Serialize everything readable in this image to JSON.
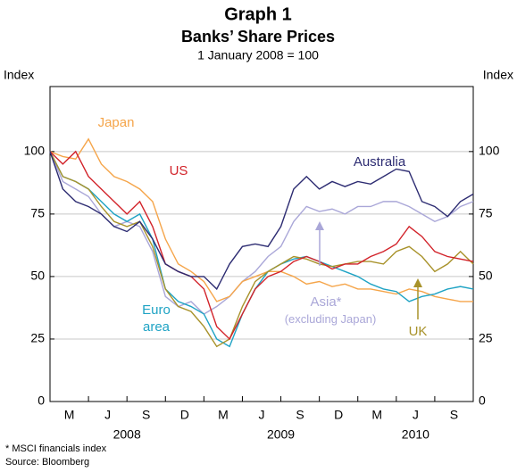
{
  "chart_data": {
    "type": "line",
    "title": "Graph 1",
    "subtitle": "Banks’ Share Prices",
    "note": "1 January 2008 = 100",
    "y_label": "Index",
    "y2_label": "Index",
    "x": [
      0,
      1,
      2,
      3,
      4,
      5,
      6,
      7,
      8,
      9,
      10,
      11,
      12,
      13,
      14,
      15,
      16,
      17,
      18,
      19,
      20,
      21,
      22,
      23,
      24,
      25,
      26,
      27,
      28,
      29,
      30,
      31,
      32,
      33
    ],
    "xlim": [
      0,
      33
    ],
    "xticks": [
      3,
      6,
      9,
      12,
      15,
      18,
      21,
      24,
      27,
      30
    ],
    "quarter_labels": [
      {
        "value": 1.5,
        "label": "M"
      },
      {
        "value": 4.5,
        "label": "J"
      },
      {
        "value": 7.5,
        "label": "S"
      },
      {
        "value": 10.5,
        "label": "D"
      },
      {
        "value": 13.5,
        "label": "M"
      },
      {
        "value": 16.5,
        "label": "J"
      },
      {
        "value": 19.5,
        "label": "S"
      },
      {
        "value": 22.5,
        "label": "D"
      },
      {
        "value": 25.5,
        "label": "M"
      },
      {
        "value": 28.5,
        "label": "J"
      },
      {
        "value": 31.5,
        "label": "S"
      }
    ],
    "years": [
      {
        "value": 6,
        "label": "2008"
      },
      {
        "value": 18,
        "label": "2009"
      },
      {
        "value": 28.5,
        "label": "2010"
      }
    ],
    "ylim": [
      0,
      126
    ],
    "yticks": [
      0,
      25,
      50,
      75,
      100
    ],
    "grid": true,
    "series": [
      {
        "name": "Australia",
        "color": "#2d2c72",
        "values": [
          100,
          85,
          80,
          78,
          75,
          70,
          68,
          72,
          65,
          55,
          52,
          50,
          50,
          45,
          55,
          62,
          63,
          62,
          70,
          85,
          90,
          85,
          88,
          86,
          88,
          87,
          90,
          93,
          92,
          80,
          78,
          74,
          80,
          83
        ]
      },
      {
        "name": "US",
        "color": "#d2232a",
        "values": [
          100,
          95,
          100,
          90,
          85,
          80,
          75,
          80,
          70,
          55,
          52,
          50,
          45,
          30,
          25,
          35,
          45,
          50,
          52,
          56,
          58,
          56,
          53,
          55,
          55,
          58,
          60,
          63,
          70,
          66,
          60,
          58,
          57,
          56
        ]
      },
      {
        "name": "Japan",
        "color": "#f5a54a",
        "values": [
          100,
          98,
          97,
          105,
          95,
          90,
          88,
          85,
          80,
          65,
          55,
          52,
          48,
          40,
          42,
          48,
          50,
          52,
          52,
          50,
          47,
          48,
          46,
          47,
          45,
          45,
          44,
          43,
          45,
          44,
          42,
          41,
          40,
          40
        ]
      },
      {
        "name": "Euro area",
        "color": "#1fa3c4",
        "values": [
          100,
          90,
          88,
          85,
          80,
          75,
          72,
          75,
          65,
          45,
          40,
          38,
          35,
          25,
          22,
          35,
          45,
          52,
          55,
          57,
          58,
          56,
          54,
          52,
          50,
          47,
          45,
          44,
          40,
          42,
          43,
          45,
          46,
          45
        ]
      },
      {
        "name": "Asia*",
        "color": "#aaa7d8",
        "values": [
          100,
          88,
          85,
          82,
          75,
          70,
          72,
          70,
          60,
          42,
          38,
          40,
          35,
          38,
          42,
          48,
          52,
          58,
          62,
          72,
          78,
          76,
          77,
          75,
          78,
          78,
          80,
          80,
          78,
          75,
          72,
          74,
          78,
          80
        ]
      },
      {
        "name": "UK",
        "color": "#a8922a",
        "values": [
          100,
          90,
          88,
          85,
          78,
          72,
          70,
          72,
          62,
          45,
          38,
          36,
          30,
          22,
          25,
          38,
          48,
          52,
          55,
          58,
          57,
          55,
          54,
          55,
          56,
          56,
          55,
          60,
          62,
          58,
          52,
          55,
          60,
          55
        ]
      }
    ],
    "asia_note": "(excluding Japan)",
    "footnote": "*   MSCI financials index",
    "source": "Source: Bloomberg"
  }
}
